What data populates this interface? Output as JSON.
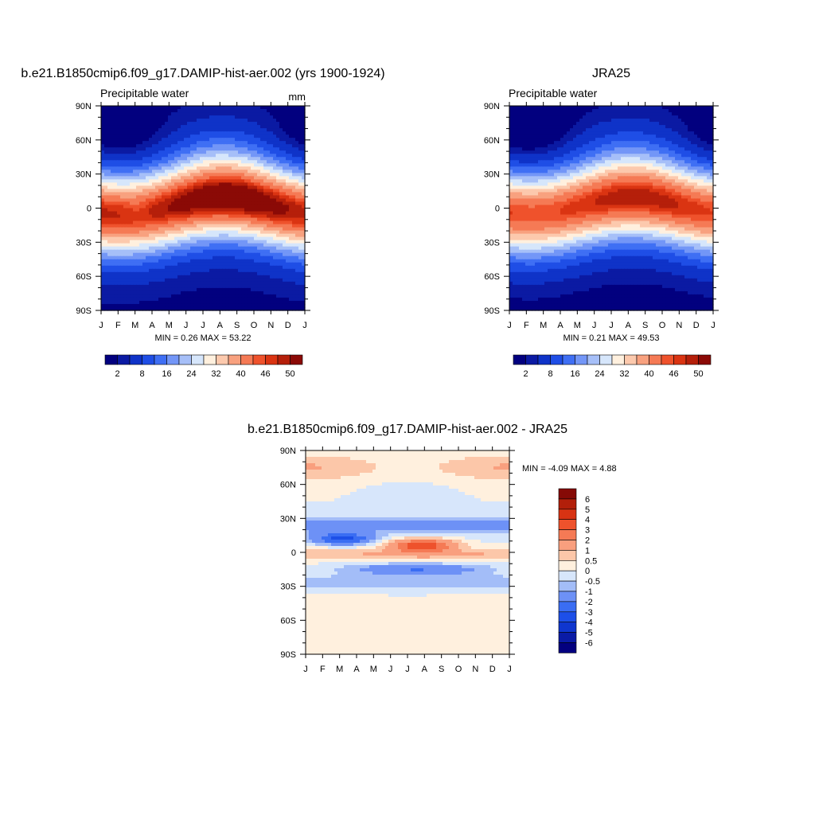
{
  "colors": {
    "abs_scale": [
      "#02007f",
      "#0b1aa3",
      "#0f33c8",
      "#1f4ee6",
      "#3f6ff4",
      "#7396f7",
      "#a6bff8",
      "#d6e6fb",
      "#fff0de",
      "#fcc9ad",
      "#f8a17f",
      "#f57a55",
      "#ef522c",
      "#da3412",
      "#b51f0a",
      "#8b0a06"
    ],
    "diff_scale": [
      "#03007f",
      "#0a1ba6",
      "#0f36cf",
      "#1d4fe8",
      "#3a6df3",
      "#6d91f6",
      "#a3bdf8",
      "#d7e6fb",
      "#fff0de",
      "#fcc7a9",
      "#f99f7e",
      "#f57a55",
      "#ee522c",
      "#d83313",
      "#b21f0a",
      "#860a06"
    ]
  },
  "chart_data": [
    {
      "id": "model",
      "type": "heatmap",
      "title": "b.e21.B1850cmip6.f09_g17.DAMIP-hist-aer.002 (yrs 1900-1924)",
      "left_label": "Precipitable water",
      "right_label": "mm",
      "x_tick_labels": [
        "J",
        "F",
        "M",
        "A",
        "M",
        "J",
        "J",
        "A",
        "S",
        "O",
        "N",
        "D",
        "J"
      ],
      "y_tick_labels": [
        "90N",
        "60N",
        "30N",
        "0",
        "30S",
        "60S",
        "90S"
      ],
      "y_range": [
        -90,
        90
      ],
      "x_range_months": [
        0,
        12
      ],
      "stats": "MIN =   0.26 MAX =  53.22",
      "min": 0.26,
      "max": 53.22,
      "colorbar_labels": [
        "2",
        "8",
        "16",
        "24",
        "32",
        "40",
        "46",
        "50"
      ],
      "levels": [
        2,
        4,
        8,
        12,
        16,
        20,
        24,
        28,
        32,
        36,
        40,
        44,
        46,
        48,
        50
      ]
    },
    {
      "id": "obs",
      "type": "heatmap",
      "title": "JRA25",
      "left_label": "Precipitable water",
      "x_tick_labels": [
        "J",
        "F",
        "M",
        "A",
        "M",
        "J",
        "J",
        "A",
        "S",
        "O",
        "N",
        "D",
        "J"
      ],
      "y_tick_labels": [
        "90N",
        "60N",
        "30N",
        "0",
        "30S",
        "60S",
        "90S"
      ],
      "y_range": [
        -90,
        90
      ],
      "x_range_months": [
        0,
        12
      ],
      "stats": "MIN =   0.21 MAX =  49.53",
      "min": 0.21,
      "max": 49.53,
      "colorbar_labels": [
        "2",
        "8",
        "16",
        "24",
        "32",
        "40",
        "46",
        "50"
      ],
      "levels": [
        2,
        4,
        8,
        12,
        16,
        20,
        24,
        28,
        32,
        36,
        40,
        44,
        46,
        48,
        50
      ]
    },
    {
      "id": "diff",
      "type": "heatmap",
      "title": "b.e21.B1850cmip6.f09_g17.DAMIP-hist-aer.002 - JRA25",
      "x_tick_labels": [
        "J",
        "F",
        "M",
        "A",
        "M",
        "J",
        "J",
        "A",
        "S",
        "O",
        "N",
        "D",
        "J"
      ],
      "y_tick_labels": [
        "90N",
        "60N",
        "30N",
        "0",
        "30S",
        "60S",
        "90S"
      ],
      "y_range": [
        -90,
        90
      ],
      "x_range_months": [
        0,
        12
      ],
      "stats": "MIN =  -4.09 MAX =   4.88",
      "min": -4.09,
      "max": 4.88,
      "colorbar_labels": [
        "6",
        "5",
        "4",
        "3",
        "2",
        "1",
        "0.5",
        "0",
        "-0.5",
        "-1",
        "-2",
        "-3",
        "-4",
        "-5",
        "-6"
      ],
      "levels": [
        -6,
        -5,
        -4,
        -3,
        -2,
        -1,
        -0.5,
        0,
        0.5,
        1,
        2,
        3,
        4,
        5,
        6
      ]
    }
  ]
}
